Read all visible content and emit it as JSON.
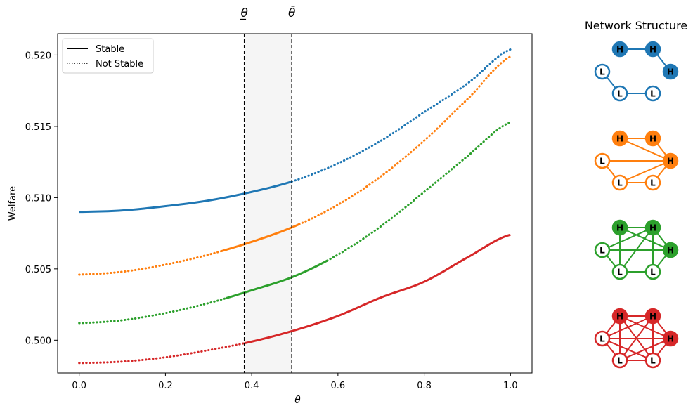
{
  "chart_data": {
    "type": "line",
    "xlabel": "θ",
    "ylabel": "Welfare",
    "xlim": [
      -0.05,
      1.05
    ],
    "ylim": [
      0.4977,
      0.5215
    ],
    "xticks": [
      0.0,
      0.2,
      0.4,
      0.6,
      0.8,
      1.0
    ],
    "xtick_labels": [
      "0.0",
      "0.2",
      "0.4",
      "0.6",
      "0.8",
      "1.0"
    ],
    "yticks": [
      0.5,
      0.505,
      0.51,
      0.515,
      0.52
    ],
    "ytick_labels": [
      "0.500",
      "0.505",
      "0.510",
      "0.515",
      "0.520"
    ],
    "grid": false,
    "legend": {
      "placement": "upper-left",
      "entries": [
        {
          "label": "Stable",
          "style": "solid"
        },
        {
          "label": "Not Stable",
          "style": "dotted"
        }
      ]
    },
    "threshold_lines": [
      {
        "label": "θ̲",
        "x": 0.383
      },
      {
        "label": "θ̄",
        "x": 0.493
      }
    ],
    "shaded_region": {
      "x": [
        0.383,
        0.493
      ],
      "color": "#f5f5f5"
    },
    "series": [
      {
        "color": "#1f77b4",
        "stable_range": [
          0.0,
          0.493
        ],
        "x": [
          0.0,
          0.1,
          0.2,
          0.3,
          0.4,
          0.5,
          0.6,
          0.7,
          0.8,
          0.9,
          1.0
        ],
        "values": [
          0.509,
          0.5091,
          0.5094,
          0.5098,
          0.5104,
          0.5112,
          0.5124,
          0.514,
          0.516,
          0.518,
          0.5204
        ]
      },
      {
        "color": "#ff7f0e",
        "stable_range": [
          0.33,
          0.51
        ],
        "x": [
          0.0,
          0.1,
          0.2,
          0.3,
          0.4,
          0.5,
          0.6,
          0.7,
          0.8,
          0.9,
          1.0
        ],
        "values": [
          0.5046,
          0.5048,
          0.5053,
          0.506,
          0.5069,
          0.508,
          0.5095,
          0.5115,
          0.514,
          0.5169,
          0.5199
        ]
      },
      {
        "color": "#2ca02c",
        "stable_range": [
          0.34,
          0.575
        ],
        "x": [
          0.0,
          0.1,
          0.2,
          0.3,
          0.4,
          0.5,
          0.6,
          0.7,
          0.8,
          0.9,
          1.0
        ],
        "values": [
          0.5012,
          0.5014,
          0.5019,
          0.5026,
          0.5035,
          0.5045,
          0.506,
          0.508,
          0.5104,
          0.5129,
          0.5153
        ]
      },
      {
        "color": "#d62728",
        "stable_range": [
          0.383,
          1.0
        ],
        "x": [
          0.0,
          0.1,
          0.2,
          0.3,
          0.4,
          0.5,
          0.6,
          0.7,
          0.8,
          0.9,
          1.0
        ],
        "values": [
          0.4984,
          0.4985,
          0.4988,
          0.4993,
          0.4999,
          0.5007,
          0.5017,
          0.503,
          0.5041,
          0.5058,
          0.5074
        ]
      }
    ]
  },
  "network_panel": {
    "title": "Network Structure",
    "networks": [
      {
        "color": "#1f77b4",
        "nodes": [
          {
            "label": "H",
            "fill": "#1f77b4"
          },
          {
            "label": "H",
            "fill": "#1f77b4"
          },
          {
            "label": "H",
            "fill": "#1f77b4"
          },
          {
            "label": "L",
            "fill": "#ffffff"
          },
          {
            "label": "L",
            "fill": "#ffffff"
          },
          {
            "label": "L",
            "fill": "#ffffff"
          }
        ],
        "edges": [
          [
            0,
            1
          ],
          [
            1,
            2
          ],
          [
            3,
            4
          ],
          [
            4,
            5
          ]
        ]
      },
      {
        "color": "#ff7f0e",
        "nodes": [
          {
            "label": "H",
            "fill": "#ff7f0e"
          },
          {
            "label": "H",
            "fill": "#ff7f0e"
          },
          {
            "label": "H",
            "fill": "#ff7f0e"
          },
          {
            "label": "L",
            "fill": "#ffffff"
          },
          {
            "label": "L",
            "fill": "#ffffff"
          },
          {
            "label": "L",
            "fill": "#ffffff"
          }
        ],
        "edges": [
          [
            0,
            1
          ],
          [
            0,
            2
          ],
          [
            1,
            2
          ],
          [
            2,
            3
          ],
          [
            2,
            4
          ],
          [
            2,
            5
          ],
          [
            3,
            4
          ],
          [
            4,
            5
          ]
        ]
      },
      {
        "color": "#2ca02c",
        "nodes": [
          {
            "label": "H",
            "fill": "#2ca02c"
          },
          {
            "label": "H",
            "fill": "#2ca02c"
          },
          {
            "label": "H",
            "fill": "#2ca02c"
          },
          {
            "label": "L",
            "fill": "#ffffff"
          },
          {
            "label": "L",
            "fill": "#ffffff"
          },
          {
            "label": "L",
            "fill": "#ffffff"
          }
        ],
        "edges": [
          [
            0,
            1
          ],
          [
            0,
            2
          ],
          [
            1,
            2
          ],
          [
            0,
            4
          ],
          [
            1,
            3
          ],
          [
            1,
            4
          ],
          [
            1,
            5
          ],
          [
            2,
            3
          ],
          [
            2,
            5
          ],
          [
            3,
            4
          ],
          [
            4,
            5
          ]
        ]
      },
      {
        "color": "#d62728",
        "nodes": [
          {
            "label": "H",
            "fill": "#d62728"
          },
          {
            "label": "H",
            "fill": "#d62728"
          },
          {
            "label": "H",
            "fill": "#d62728"
          },
          {
            "label": "L",
            "fill": "#ffffff"
          },
          {
            "label": "L",
            "fill": "#ffffff"
          },
          {
            "label": "L",
            "fill": "#ffffff"
          }
        ],
        "edges": [
          [
            0,
            1
          ],
          [
            0,
            2
          ],
          [
            0,
            3
          ],
          [
            0,
            4
          ],
          [
            0,
            5
          ],
          [
            1,
            2
          ],
          [
            1,
            3
          ],
          [
            1,
            4
          ],
          [
            1,
            5
          ],
          [
            2,
            3
          ],
          [
            2,
            4
          ],
          [
            2,
            5
          ],
          [
            3,
            4
          ],
          [
            3,
            5
          ],
          [
            4,
            5
          ]
        ]
      }
    ]
  }
}
